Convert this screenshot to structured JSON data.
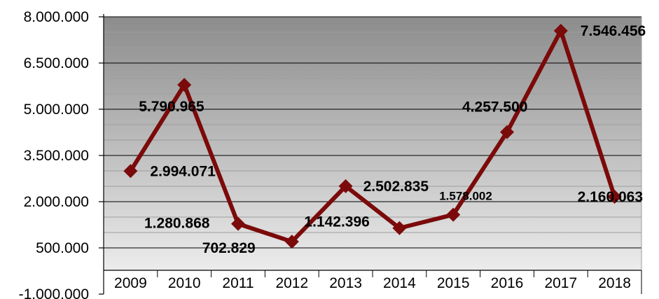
{
  "chart_data": {
    "type": "line",
    "title": "",
    "xlabel": "",
    "ylabel": "",
    "categories": [
      "2009",
      "2010",
      "2011",
      "2012",
      "2013",
      "2014",
      "2015",
      "2016",
      "2017",
      "2018"
    ],
    "series": [
      {
        "values": [
          2994071,
          5790965,
          1280868,
          702829,
          2502835,
          1142396,
          1578002,
          4257500,
          7546456,
          2160063
        ],
        "labels": [
          "2.994.071",
          "5.790.965",
          "1.280.868",
          "702.829",
          "2.502.835",
          "1.142.396",
          "1.578.002",
          "4.257.500",
          "7.546.456",
          "2.160.063"
        ],
        "color": "#7b0a0a",
        "marker": "diamond"
      }
    ],
    "ylim": [
      -1000000,
      8000000
    ],
    "yticks": [
      -1000000,
      500000,
      2000000,
      3500000,
      5000000,
      6500000,
      8000000
    ],
    "ytick_labels": [
      "-1.000.000",
      "500.000",
      "2.000.000",
      "3.500.000",
      "5.000.000",
      "6.500.000",
      "8.000.000"
    ],
    "grid": true,
    "legend": "none",
    "background": "gradient-gray"
  }
}
